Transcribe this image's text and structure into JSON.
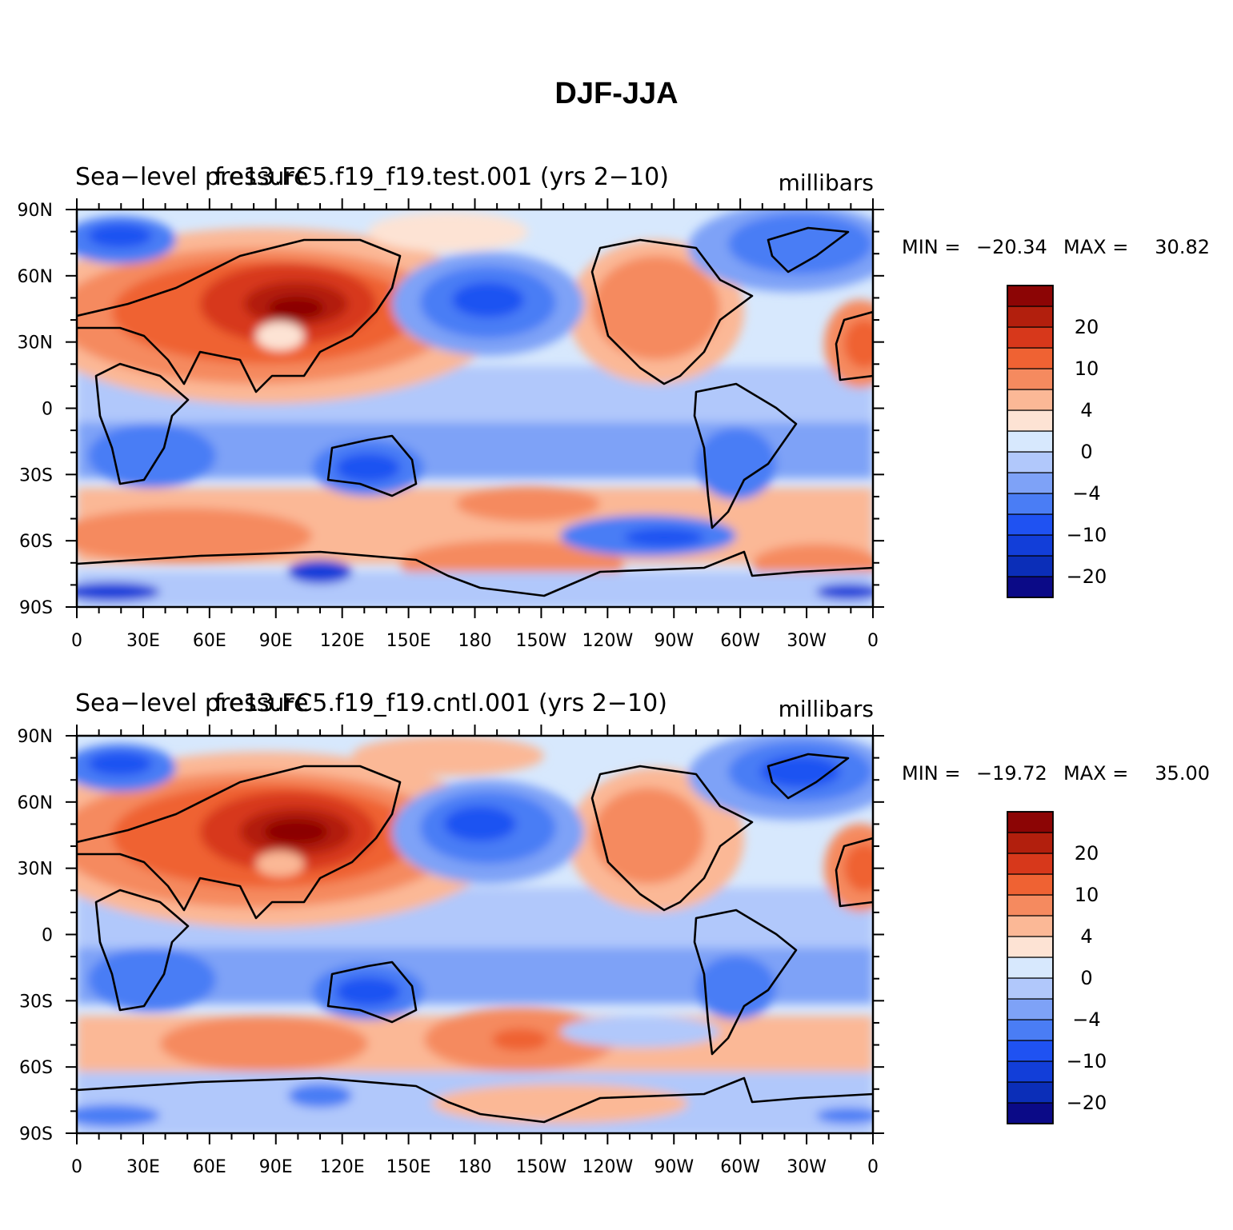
{
  "figure": {
    "title": "DJF-JJA"
  },
  "colorbar_levels": [
    "20",
    "10",
    "4",
    "0",
    "−4",
    "−10",
    "−20"
  ],
  "colorbar_colors": [
    "#0b0a87",
    "#0b2eb8",
    "#123ed9",
    "#1f52f2",
    "#4a7df5",
    "#7ea2f7",
    "#b1c8fb",
    "#d7e8fd",
    "#fde3d4",
    "#fbb896",
    "#f58a5f",
    "#ef6233",
    "#d7381b",
    "#b21f0d",
    "#8c0505"
  ],
  "x_tick_labels": [
    "0",
    "30E",
    "60E",
    "90E",
    "120E",
    "150E",
    "180",
    "150W",
    "120W",
    "90W",
    "60W",
    "30W",
    "0"
  ],
  "y_tick_labels": [
    "90N",
    "60N",
    "30N",
    "0",
    "30S",
    "60S",
    "90S"
  ],
  "panels": [
    {
      "left_title": "Sea−level pressure",
      "center_title": "f.e13.FC5.f19_f19.test.001 (yrs 2−10)",
      "units": "millibars",
      "stats_min_label": "MIN = ",
      "stats_min": "−20.34",
      "stats_max_label": "MAX = ",
      "stats_max": "30.82"
    },
    {
      "left_title": "Sea−level pressure",
      "center_title": "f.e13.FC5.f19_f19.cntl.001 (yrs 2−10)",
      "units": "millibars",
      "stats_min_label": "MIN = ",
      "stats_min": "−19.72",
      "stats_max_label": "MAX = ",
      "stats_max": "35.00"
    }
  ]
}
